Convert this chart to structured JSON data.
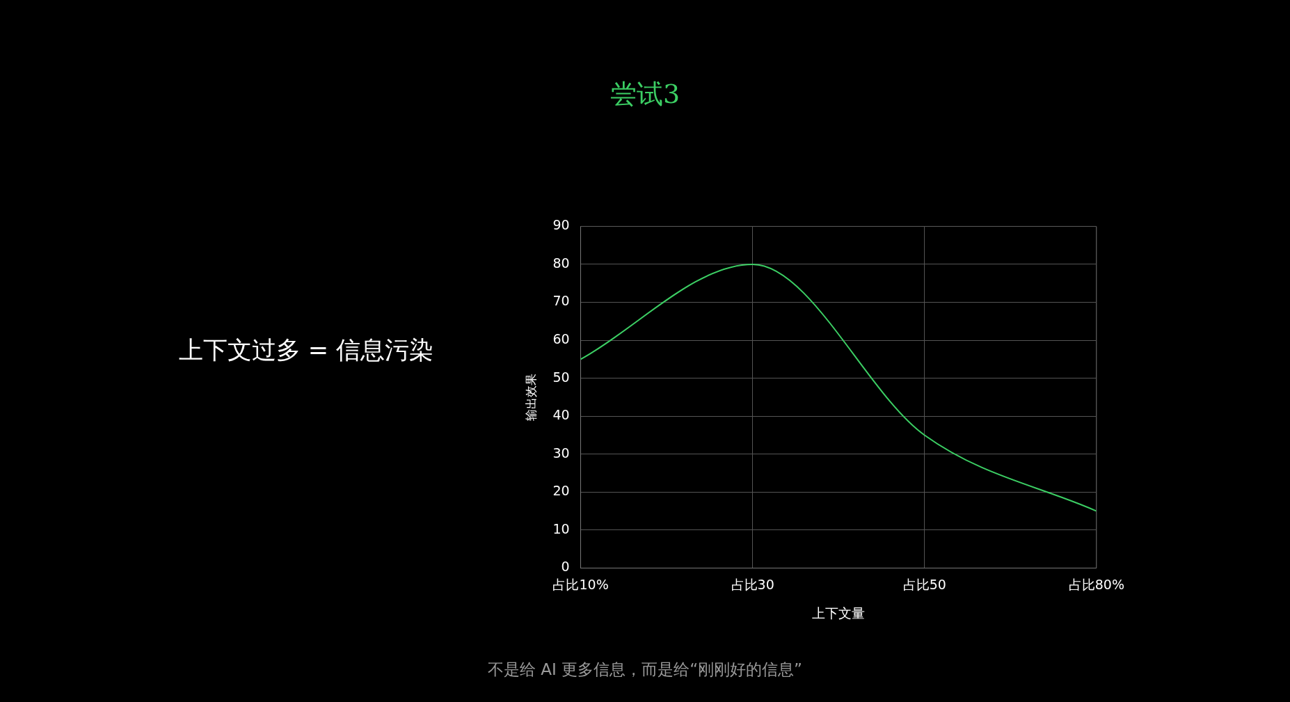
{
  "chart_data": {
    "type": "line",
    "title": "尝试3",
    "xlabel": "上下文量",
    "ylabel": "输出效果",
    "categories": [
      "占比10%",
      "占比30",
      "占比50",
      "占比80%"
    ],
    "series": [
      {
        "color": "#3ccf64",
        "values": [
          55,
          80,
          35,
          15
        ]
      }
    ],
    "ylim": [
      0,
      90
    ],
    "yticks": [
      0,
      10,
      20,
      30,
      40,
      50,
      60,
      70,
      80,
      90
    ],
    "grid": true,
    "legend": false,
    "marker": "none",
    "annotations": [
      "上下文过多 = 信息污染",
      "不是给 AI 更多信息，而是给“刚刚好的信息”"
    ]
  }
}
